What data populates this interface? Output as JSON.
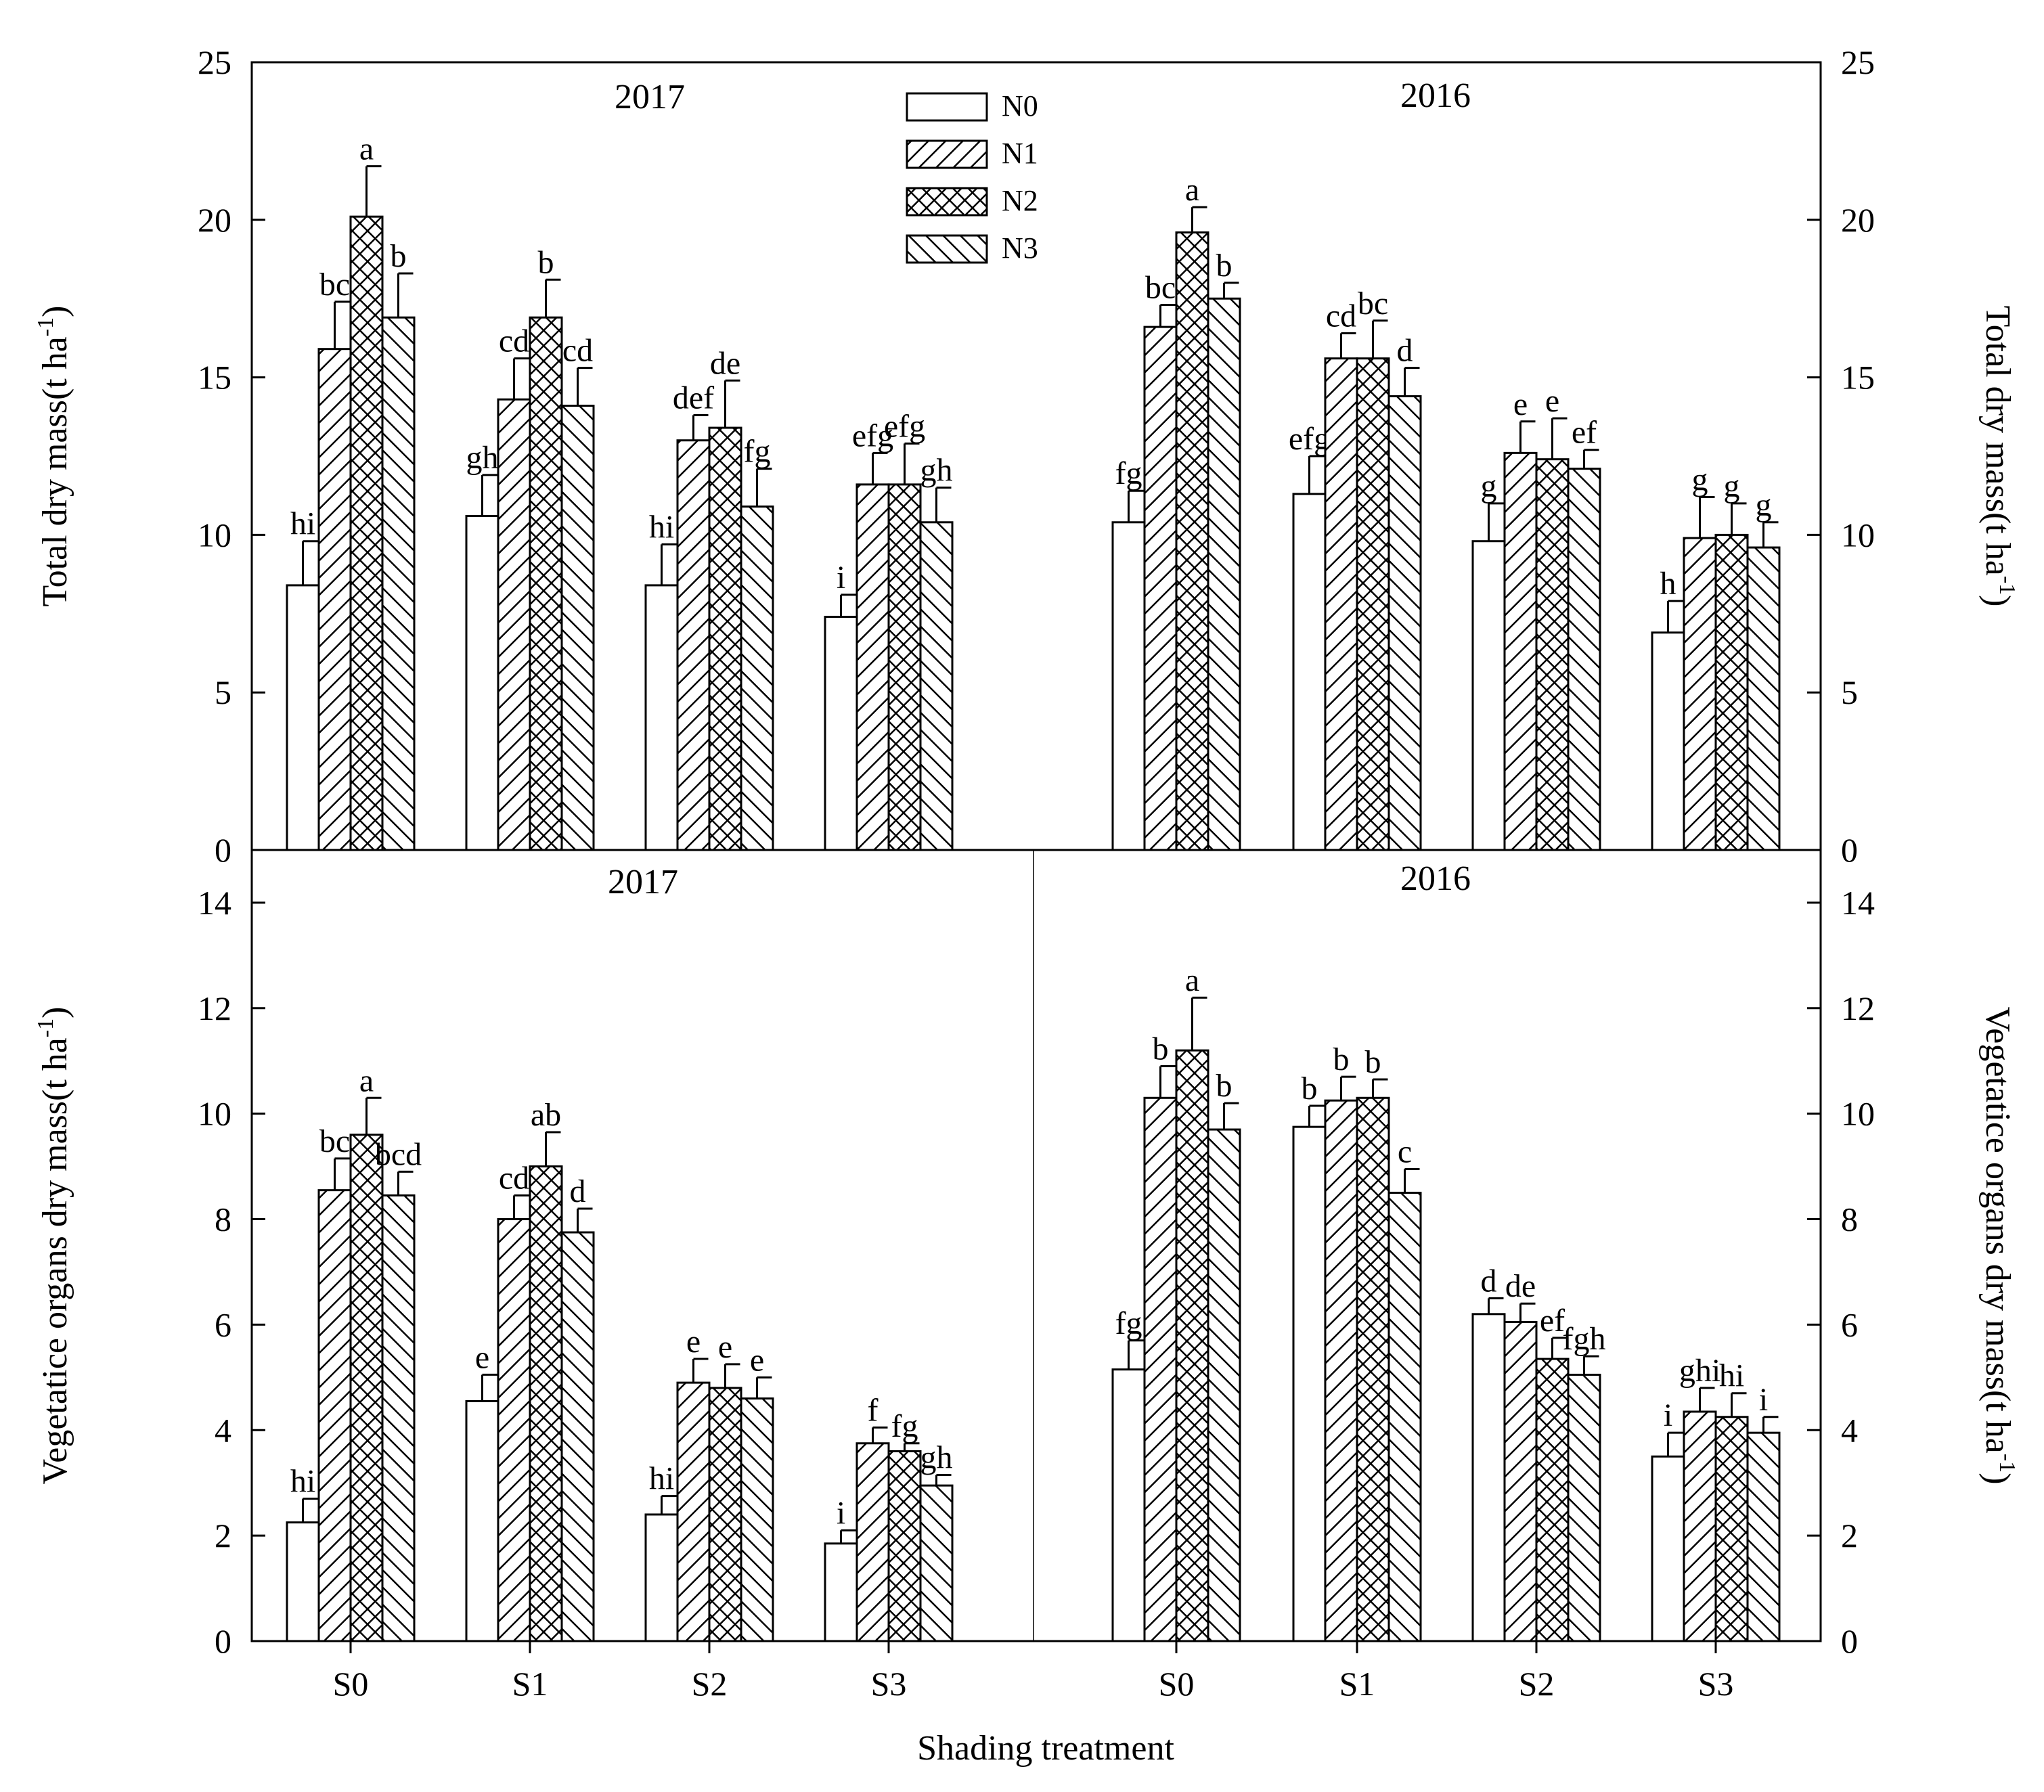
{
  "chart_data": {
    "type": "bar",
    "categories": [
      "S0",
      "S1",
      "S2",
      "S3"
    ],
    "series_names": [
      "N0",
      "N1",
      "N2",
      "N3"
    ],
    "xlabel": "Shading treatment",
    "legend": {
      "placement": "top-center",
      "entries": [
        "N0",
        "N1",
        "N2",
        "N3"
      ]
    },
    "panels": [
      {
        "id": "top-2017",
        "title": "2017",
        "ylabel_main": "Total dry mass(t ha",
        "ylabel_sup": "-1",
        "ylabel_tail": ")",
        "ylim": [
          0,
          25
        ],
        "yticks": [
          0,
          5,
          10,
          15,
          20,
          25
        ],
        "tick_side": "left",
        "groups": [
          {
            "category": "S0",
            "bars": [
              {
                "series": "N0",
                "value": 8.4,
                "error": 1.4,
                "label": "hi"
              },
              {
                "series": "N1",
                "value": 15.9,
                "error": 1.5,
                "label": "bc"
              },
              {
                "series": "N2",
                "value": 20.1,
                "error": 1.6,
                "label": "a"
              },
              {
                "series": "N3",
                "value": 16.9,
                "error": 1.4,
                "label": "b"
              }
            ]
          },
          {
            "category": "S1",
            "bars": [
              {
                "series": "N0",
                "value": 10.6,
                "error": 1.3,
                "label": "gh"
              },
              {
                "series": "N1",
                "value": 14.3,
                "error": 1.3,
                "label": "cd"
              },
              {
                "series": "N2",
                "value": 16.9,
                "error": 1.2,
                "label": "b"
              },
              {
                "series": "N3",
                "value": 14.1,
                "error": 1.2,
                "label": "cd"
              }
            ]
          },
          {
            "category": "S2",
            "bars": [
              {
                "series": "N0",
                "value": 8.4,
                "error": 1.3,
                "label": "hi"
              },
              {
                "series": "N1",
                "value": 13.0,
                "error": 0.8,
                "label": "def"
              },
              {
                "series": "N2",
                "value": 13.4,
                "error": 1.5,
                "label": "de"
              },
              {
                "series": "N3",
                "value": 10.9,
                "error": 1.2,
                "label": "fg"
              }
            ]
          },
          {
            "category": "S3",
            "bars": [
              {
                "series": "N0",
                "value": 7.4,
                "error": 0.7,
                "label": "i"
              },
              {
                "series": "N1",
                "value": 11.6,
                "error": 1.0,
                "label": "efg"
              },
              {
                "series": "N2",
                "value": 11.6,
                "error": 1.3,
                "label": "efg"
              },
              {
                "series": "N3",
                "value": 10.4,
                "error": 1.1,
                "label": "gh"
              }
            ]
          }
        ]
      },
      {
        "id": "top-2016",
        "title": "2016",
        "ylabel_main": "Total dry mass(t ha",
        "ylabel_sup": "-1",
        "ylabel_tail": ")",
        "ylim": [
          0,
          25
        ],
        "yticks": [
          0,
          5,
          10,
          15,
          20,
          25
        ],
        "tick_side": "right",
        "groups": [
          {
            "category": "S0",
            "bars": [
              {
                "series": "N0",
                "value": 10.4,
                "error": 1.0,
                "label": "fg"
              },
              {
                "series": "N1",
                "value": 16.6,
                "error": 0.7,
                "label": "bc"
              },
              {
                "series": "N2",
                "value": 19.6,
                "error": 0.8,
                "label": "a"
              },
              {
                "series": "N3",
                "value": 17.5,
                "error": 0.5,
                "label": "b"
              }
            ]
          },
          {
            "category": "S1",
            "bars": [
              {
                "series": "N0",
                "value": 11.3,
                "error": 1.2,
                "label": "efg"
              },
              {
                "series": "N1",
                "value": 15.6,
                "error": 0.8,
                "label": "cd"
              },
              {
                "series": "N2",
                "value": 15.6,
                "error": 1.2,
                "label": "bc"
              },
              {
                "series": "N3",
                "value": 14.4,
                "error": 0.9,
                "label": "d"
              }
            ]
          },
          {
            "category": "S2",
            "bars": [
              {
                "series": "N0",
                "value": 9.8,
                "error": 1.2,
                "label": "g"
              },
              {
                "series": "N1",
                "value": 12.6,
                "error": 1.0,
                "label": "e"
              },
              {
                "series": "N2",
                "value": 12.4,
                "error": 1.3,
                "label": "e"
              },
              {
                "series": "N3",
                "value": 12.1,
                "error": 0.6,
                "label": "ef"
              }
            ]
          },
          {
            "category": "S3",
            "bars": [
              {
                "series": "N0",
                "value": 6.9,
                "error": 1.0,
                "label": "h"
              },
              {
                "series": "N1",
                "value": 9.9,
                "error": 1.3,
                "label": "g"
              },
              {
                "series": "N2",
                "value": 10.0,
                "error": 1.0,
                "label": "g"
              },
              {
                "series": "N3",
                "value": 9.6,
                "error": 0.8,
                "label": "g"
              }
            ]
          }
        ]
      },
      {
        "id": "bottom-2017",
        "title": "2017",
        "ylabel_main": "Vegetatice organs dry mass(t ha",
        "ylabel_sup": "-1",
        "ylabel_tail": ")",
        "ylim": [
          0,
          15
        ],
        "yticks": [
          0,
          2,
          4,
          6,
          8,
          10,
          12,
          14
        ],
        "tick_side": "left",
        "groups": [
          {
            "category": "S0",
            "bars": [
              {
                "series": "N0",
                "value": 2.25,
                "error": 0.45,
                "label": "hi"
              },
              {
                "series": "N1",
                "value": 8.55,
                "error": 0.6,
                "label": "bc"
              },
              {
                "series": "N2",
                "value": 9.6,
                "error": 0.7,
                "label": "a"
              },
              {
                "series": "N3",
                "value": 8.45,
                "error": 0.45,
                "label": "bcd"
              }
            ]
          },
          {
            "category": "S1",
            "bars": [
              {
                "series": "N0",
                "value": 4.55,
                "error": 0.5,
                "label": "e"
              },
              {
                "series": "N1",
                "value": 8.0,
                "error": 0.45,
                "label": "cd"
              },
              {
                "series": "N2",
                "value": 9.0,
                "error": 0.65,
                "label": "ab"
              },
              {
                "series": "N3",
                "value": 7.75,
                "error": 0.45,
                "label": "d"
              }
            ]
          },
          {
            "category": "S2",
            "bars": [
              {
                "series": "N0",
                "value": 2.4,
                "error": 0.35,
                "label": "hi"
              },
              {
                "series": "N1",
                "value": 4.9,
                "error": 0.45,
                "label": "e"
              },
              {
                "series": "N2",
                "value": 4.8,
                "error": 0.45,
                "label": "e"
              },
              {
                "series": "N3",
                "value": 4.6,
                "error": 0.4,
                "label": "e"
              }
            ]
          },
          {
            "category": "S3",
            "bars": [
              {
                "series": "N0",
                "value": 1.85,
                "error": 0.25,
                "label": "i"
              },
              {
                "series": "N1",
                "value": 3.75,
                "error": 0.3,
                "label": "f"
              },
              {
                "series": "N2",
                "value": 3.6,
                "error": 0.15,
                "label": "fg"
              },
              {
                "series": "N3",
                "value": 2.95,
                "error": 0.2,
                "label": "gh"
              }
            ]
          }
        ]
      },
      {
        "id": "bottom-2016",
        "title": "2016",
        "ylabel_main": "Vegetatice organs dry mass(t ha",
        "ylabel_sup": "-1",
        "ylabel_tail": ")",
        "ylim": [
          0,
          15
        ],
        "yticks": [
          0,
          2,
          4,
          6,
          8,
          10,
          12,
          14
        ],
        "tick_side": "right",
        "groups": [
          {
            "category": "S0",
            "bars": [
              {
                "series": "N0",
                "value": 5.15,
                "error": 0.55,
                "label": "fg"
              },
              {
                "series": "N1",
                "value": 10.3,
                "error": 0.6,
                "label": "b"
              },
              {
                "series": "N2",
                "value": 11.2,
                "error": 1.0,
                "label": "a"
              },
              {
                "series": "N3",
                "value": 9.7,
                "error": 0.5,
                "label": "b"
              }
            ]
          },
          {
            "category": "S1",
            "bars": [
              {
                "series": "N0",
                "value": 9.75,
                "error": 0.4,
                "label": "b"
              },
              {
                "series": "N1",
                "value": 10.25,
                "error": 0.45,
                "label": "b"
              },
              {
                "series": "N2",
                "value": 10.3,
                "error": 0.35,
                "label": "b"
              },
              {
                "series": "N3",
                "value": 8.5,
                "error": 0.45,
                "label": "c"
              }
            ]
          },
          {
            "category": "S2",
            "bars": [
              {
                "series": "N0",
                "value": 6.2,
                "error": 0.3,
                "label": "d"
              },
              {
                "series": "N1",
                "value": 6.05,
                "error": 0.35,
                "label": "de"
              },
              {
                "series": "N2",
                "value": 5.35,
                "error": 0.4,
                "label": "ef"
              },
              {
                "series": "N3",
                "value": 5.05,
                "error": 0.35,
                "label": "fgh"
              }
            ]
          },
          {
            "category": "S3",
            "bars": [
              {
                "series": "N0",
                "value": 3.5,
                "error": 0.45,
                "label": "i"
              },
              {
                "series": "N1",
                "value": 4.35,
                "error": 0.45,
                "label": "ghi"
              },
              {
                "series": "N2",
                "value": 4.25,
                "error": 0.45,
                "label": "hi"
              },
              {
                "series": "N3",
                "value": 3.95,
                "error": 0.3,
                "label": "i"
              }
            ]
          }
        ]
      }
    ]
  }
}
